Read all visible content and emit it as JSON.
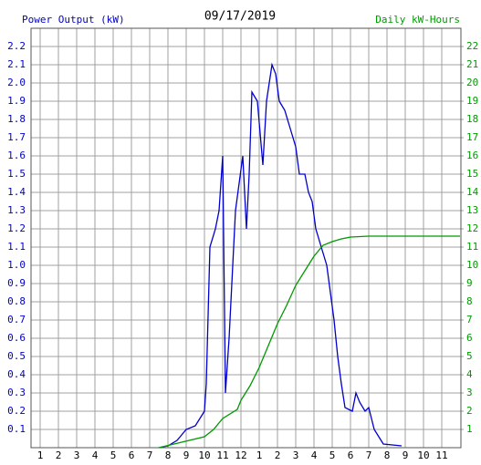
{
  "chart_data": {
    "type": "line",
    "title": "09/17/2019",
    "series": [
      {
        "name": "Power Output (kW)",
        "color": "#0000cc",
        "axis": "y",
        "x": [
          7.5,
          8,
          8.5,
          9,
          9.5,
          10,
          10.1,
          10.3,
          10.6,
          10.8,
          11.0,
          11.15,
          11.35,
          11.5,
          11.7,
          12.1,
          12.3,
          12.45,
          12.6,
          12.9,
          13.2,
          13.4,
          13.7,
          13.9,
          14.1,
          14.4,
          14.7,
          15.0,
          15.2,
          15.5,
          15.7,
          15.9,
          16.1,
          16.4,
          16.7,
          16.9,
          17.1,
          17.3,
          17.5,
          17.7,
          18.1,
          18.3,
          18.5,
          18.8,
          19.0,
          19.3,
          19.8,
          20.8
        ],
        "values": [
          0,
          0.01,
          0.04,
          0.1,
          0.12,
          0.2,
          0.35,
          1.1,
          1.2,
          1.3,
          1.6,
          0.3,
          0.6,
          0.9,
          1.3,
          1.6,
          1.2,
          1.5,
          1.95,
          1.9,
          1.55,
          1.9,
          2.1,
          2.05,
          1.9,
          1.85,
          1.75,
          1.65,
          1.5,
          1.5,
          1.4,
          1.35,
          1.2,
          1.1,
          1.0,
          0.85,
          0.7,
          0.5,
          0.35,
          0.22,
          0.2,
          0.3,
          0.25,
          0.2,
          0.22,
          0.1,
          0.02,
          0.01
        ]
      },
      {
        "name": "Daily kW-Hours",
        "color": "#009900",
        "axis": "y2",
        "x": [
          7.5,
          10,
          10.5,
          11,
          11.8,
          12,
          12.5,
          13,
          13.5,
          14,
          14.5,
          15,
          15.5,
          16,
          16.5,
          17,
          17.5,
          18,
          19,
          24
        ],
        "values": [
          0,
          0.6,
          1.0,
          1.6,
          2.1,
          2.6,
          3.4,
          4.4,
          5.6,
          6.8,
          7.8,
          8.9,
          9.7,
          10.5,
          11.1,
          11.3,
          11.45,
          11.55,
          11.6,
          11.6
        ]
      }
    ],
    "xlim": [
      0.5,
      24.05
    ],
    "xticks": [
      1,
      2,
      3,
      4,
      5,
      6,
      7,
      8,
      9,
      10,
      11,
      12,
      {
        "value": 13,
        "label": "1"
      },
      {
        "value": 14,
        "label": "2"
      },
      {
        "value": 15,
        "label": "3"
      },
      {
        "value": 16,
        "label": "4"
      },
      {
        "value": 17,
        "label": "5"
      },
      {
        "value": 18,
        "label": "6"
      },
      {
        "value": 19,
        "label": "7"
      },
      {
        "value": 20,
        "label": "8"
      },
      {
        "value": 21,
        "label": "9"
      },
      {
        "value": 22,
        "label": "10"
      },
      {
        "value": 23,
        "label": "11"
      }
    ],
    "ylim": [
      0,
      2.3
    ],
    "yticks": [
      0.1,
      0.2,
      0.3,
      0.4,
      0.5,
      0.6,
      0.7,
      0.8,
      0.9,
      {
        "value": 1,
        "label": "1.0"
      },
      1.1,
      1.2,
      1.3,
      1.4,
      1.5,
      1.6,
      1.7,
      1.8,
      1.9,
      {
        "value": 2,
        "label": "2.0"
      },
      2.1,
      2.2
    ],
    "y2lim": [
      0,
      23
    ],
    "y2ticks": [
      1,
      2,
      3,
      4,
      5,
      6,
      7,
      8,
      9,
      10,
      11,
      12,
      13,
      14,
      15,
      16,
      17,
      18,
      19,
      20,
      21,
      22
    ],
    "grid": true
  }
}
